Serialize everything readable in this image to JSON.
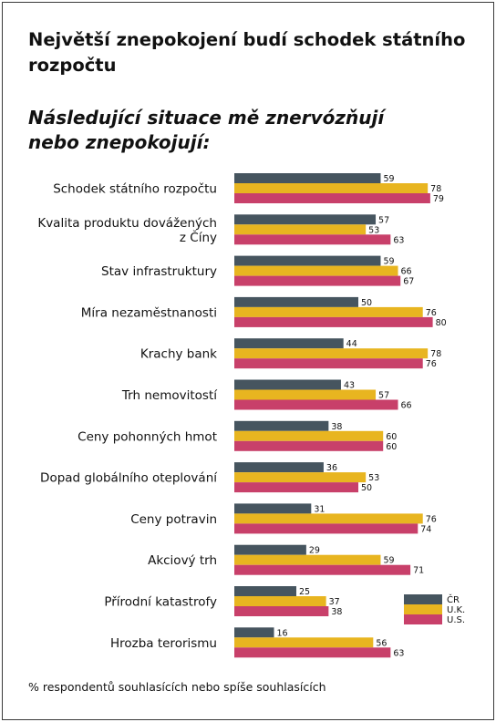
{
  "title": "Největší znepokojení budí schodek státního rozpočtu",
  "subtitle": "Následující situace mě znervózňují nebo znepokojují:",
  "footnote": "% respondentů souhlasících nebo spíše souhlasících",
  "colors": {
    "cr": "#46555f",
    "uk": "#e8b520",
    "us": "#c8406a"
  },
  "chart_data": {
    "type": "bar",
    "orientation": "horizontal",
    "categories": [
      "Schodek státního rozpočtu",
      "Kvalita produktu dovážených z Číny",
      "Stav infrastruktury",
      "Míra nezaměstnanosti",
      "Krachy bank",
      "Trh nemovitostí",
      "Ceny pohonných hmot",
      "Dopad globálního oteplování",
      "Ceny potravin",
      "Akciový trh",
      "Přírodní katastrofy",
      "Hrozba terorismu"
    ],
    "category_lines": [
      [
        "Schodek státního rozpočtu"
      ],
      [
        "Kvalita produktu dovážených",
        "z Číny"
      ],
      [
        "Stav infrastruktury"
      ],
      [
        "Míra nezaměstnanosti"
      ],
      [
        "Krachy bank"
      ],
      [
        "Trh nemovitostí"
      ],
      [
        "Ceny pohonných hmot"
      ],
      [
        "Dopad globálního oteplování"
      ],
      [
        "Ceny potravin"
      ],
      [
        "Akciový trh"
      ],
      [
        "Přírodní katastrofy"
      ],
      [
        "Hrozba terorismu"
      ]
    ],
    "series": [
      {
        "name": "ČR",
        "color": "#46555f",
        "values": [
          59,
          57,
          59,
          50,
          44,
          43,
          38,
          36,
          31,
          29,
          25,
          16
        ]
      },
      {
        "name": "U.K.",
        "color": "#e8b520",
        "values": [
          78,
          53,
          66,
          76,
          78,
          57,
          60,
          53,
          76,
          59,
          37,
          56
        ]
      },
      {
        "name": "U.S.",
        "color": "#c8406a",
        "values": [
          79,
          63,
          67,
          80,
          76,
          66,
          60,
          50,
          74,
          71,
          38,
          63
        ]
      }
    ],
    "legend_position": "bottom-right",
    "grid": false
  }
}
